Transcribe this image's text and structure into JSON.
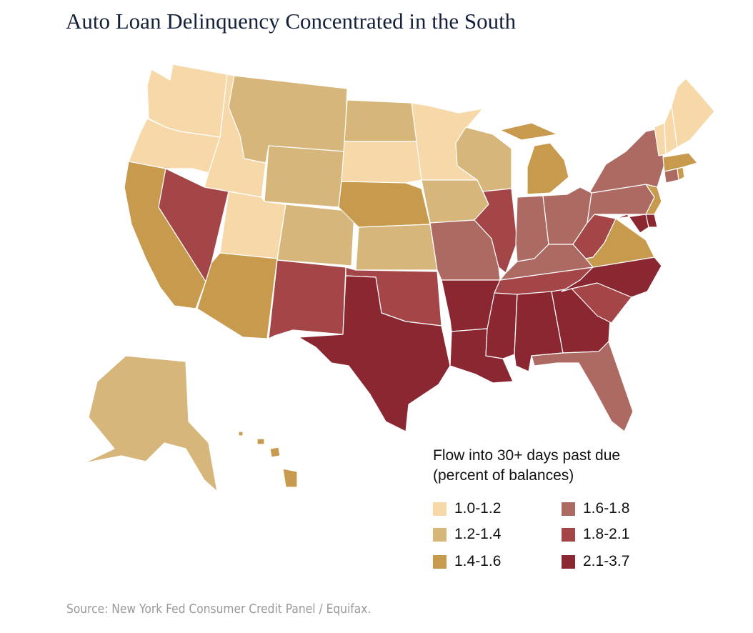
{
  "title": "Auto Loan Delinquency Concentrated in the South",
  "source": "Source: New York Fed Consumer Credit Panel / Equifax.",
  "legend": {
    "title_line1": "Flow into 30+ days past due",
    "title_line2": "(percent of balances)",
    "bins": [
      {
        "label": "1.0-1.2",
        "color": "#f7d9a9"
      },
      {
        "label": "1.2-1.4",
        "color": "#d6b67a"
      },
      {
        "label": "1.4-1.6",
        "color": "#c79a4e"
      },
      {
        "label": "1.6-1.8",
        "color": "#ac6a62"
      },
      {
        "label": "1.8-2.1",
        "color": "#a44648"
      },
      {
        "label": "2.1-3.7",
        "color": "#8b2731"
      }
    ]
  },
  "states": {
    "WA": 0,
    "OR": 0,
    "ID": 0,
    "UT": 0,
    "SD": 0,
    "MN": 0,
    "IA": 1,
    "WI": 1,
    "ME": 0,
    "NH": 0,
    "VT": 0,
    "MT": 1,
    "WY": 1,
    "ND": 1,
    "CO": 1,
    "KS": 1,
    "AK": 1,
    "CA": 2,
    "AZ": 2,
    "NE": 2,
    "MI": 2,
    "VA": 2,
    "NJ": 2,
    "HI": 2,
    "MA": 2,
    "RI": 2,
    "MO": 3,
    "IN": 3,
    "OH": 3,
    "KY": 3,
    "PA": 3,
    "NY": 3,
    "CT": 3,
    "FL": 3,
    "NV": 4,
    "NM": 4,
    "OK": 4,
    "IL": 4,
    "WV": 4,
    "TN": 4,
    "SC": 4,
    "TX": 5,
    "AR": 5,
    "LA": 5,
    "MS": 5,
    "AL": 5,
    "GA": 5,
    "NC": 5,
    "MD": 5,
    "DE": 5
  }
}
